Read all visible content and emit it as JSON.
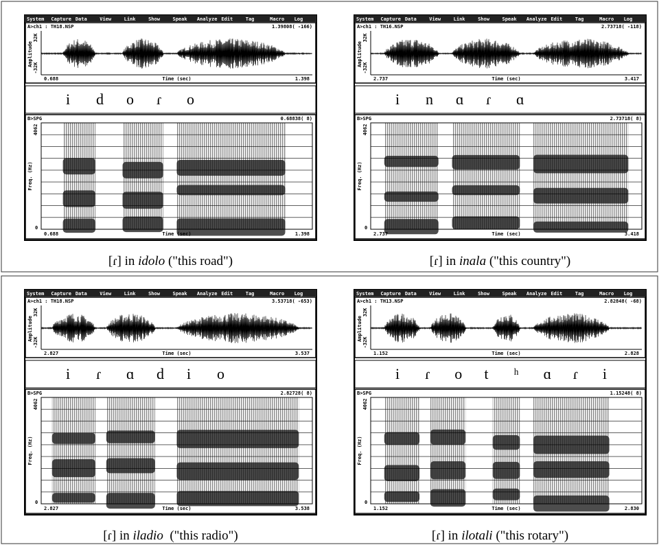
{
  "menu": [
    "System",
    "Capture",
    "Data",
    "View",
    "Link",
    "Show",
    "Speak",
    "Analyze",
    "Edit",
    "Tag",
    "Macro",
    "Log"
  ],
  "panels": [
    {
      "wave": {
        "file": "A>ch1 : TH18.NSP",
        "cursor": "1.39808( -166)",
        "y_label": "Amplitude",
        "y_top": "32K",
        "y_bottom": "-32K",
        "x_start": "0.688",
        "x_label": "Time (sec)",
        "x_end": "1.398"
      },
      "phones": [
        "i",
        "d",
        "o",
        "ɾ",
        "o"
      ],
      "spg": {
        "file": "B>SPG",
        "cursor": "0.68838( 8)",
        "y_label": "Freq. (Hz)",
        "y_top": "4062",
        "y_bottom": "0",
        "x_start": "0.688",
        "x_label": "Time (sec)",
        "x_end": "1.398"
      },
      "caption": {
        "pre": "[ɾ] in ",
        "word": "idolo",
        "post": " (\"this road\")"
      }
    },
    {
      "wave": {
        "file": "A>ch1 : TH16.NSP",
        "cursor": "2.73718( -118)",
        "y_label": "Amplitude",
        "y_top": "32K",
        "y_bottom": "-32K",
        "x_start": "2.737",
        "x_label": "Time (sec)",
        "x_end": "3.417"
      },
      "phones": [
        "i",
        "n",
        "ɑ",
        "ɾ",
        "ɑ"
      ],
      "spg": {
        "file": "B>SPG",
        "cursor": "2.73718( 8)",
        "y_label": "Freq. (Hz)",
        "y_top": "4062",
        "y_bottom": "0",
        "x_start": "2.737",
        "x_label": "Time (sec)",
        "x_end": "3.418"
      },
      "caption": {
        "pre": "[ɾ] in ",
        "word": "inala",
        "post": " (\"this country\")"
      }
    },
    {
      "wave": {
        "file": "A>ch1 : TH18.NSP",
        "cursor": "3.53718( -653)",
        "y_label": "Amplitude",
        "y_top": "32K",
        "y_bottom": "-32K",
        "x_start": "2.827",
        "x_label": "Time (sec)",
        "x_end": "3.537"
      },
      "phones": [
        "i",
        "ɾ",
        "ɑ",
        "d",
        "i",
        "o"
      ],
      "spg": {
        "file": "B>SPG",
        "cursor": "2.82728( 8)",
        "y_label": "Freq. (Hz)",
        "y_top": "4062",
        "y_bottom": "0",
        "x_start": "2.827",
        "x_label": "Time (sec)",
        "x_end": "3.538"
      },
      "caption": {
        "pre": "[ɾ] in ",
        "word": "iladio",
        "post": "  (\"this radio\")"
      }
    },
    {
      "wave": {
        "file": "A>ch1 : TH13.NSP",
        "cursor": "2.82848( -68)",
        "y_label": "Amplitude",
        "y_top": "32K",
        "y_bottom": "-32K",
        "x_start": "1.152",
        "x_label": "Time (sec)",
        "x_end": "2.828"
      },
      "phones": [
        "i",
        "ɾ",
        "o",
        "t",
        "ʰ",
        "ɑ",
        "ɾ",
        "i"
      ],
      "spg": {
        "file": "B>SPG",
        "cursor": "1.15248( 8)",
        "y_label": "Freq. (Hz)",
        "y_top": "4062",
        "y_bottom": "0",
        "x_start": "1.152",
        "x_label": "Time (sec)",
        "x_end": "2.830"
      },
      "caption": {
        "pre": "[ɾ] in ",
        "word": "ilotali",
        "post": " (\"this rotary\")"
      }
    }
  ]
}
